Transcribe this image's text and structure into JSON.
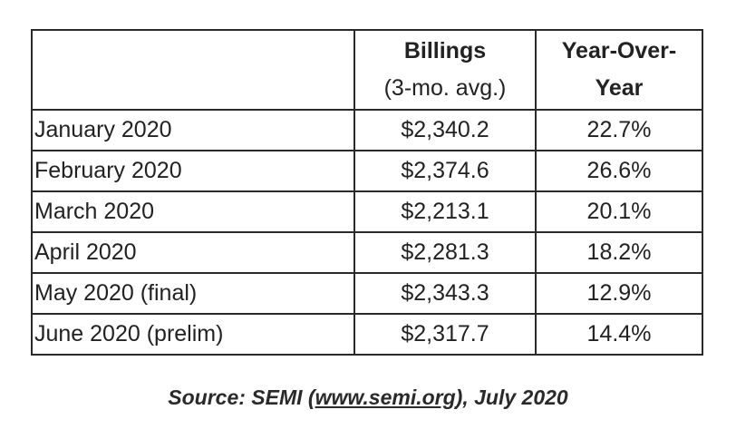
{
  "chart_data": {
    "type": "table",
    "columns": [
      {
        "line1": "",
        "line2": ""
      },
      {
        "line1": "Billings",
        "line2": "(3-mo. avg.)"
      },
      {
        "line1": "Year-Over-",
        "line2": "Year"
      }
    ],
    "rows": [
      {
        "month": "January 2020",
        "billings": "$2,340.2",
        "yoy": "22.7%"
      },
      {
        "month": "February 2020",
        "billings": "$2,374.6",
        "yoy": "26.6%"
      },
      {
        "month": "March 2020",
        "billings": "$2,213.1",
        "yoy": "20.1%"
      },
      {
        "month": "April 2020",
        "billings": "$2,281.3",
        "yoy": "18.2%"
      },
      {
        "month": "May 2020 (final)",
        "billings": "$2,343.3",
        "yoy": "12.9%"
      },
      {
        "month": "June 2020 (prelim)",
        "billings": "$2,317.7",
        "yoy": "14.4%"
      }
    ]
  },
  "source": {
    "prefix": "Source: SEMI (",
    "link_text": "www.semi.org",
    "suffix": "), July 2020"
  }
}
